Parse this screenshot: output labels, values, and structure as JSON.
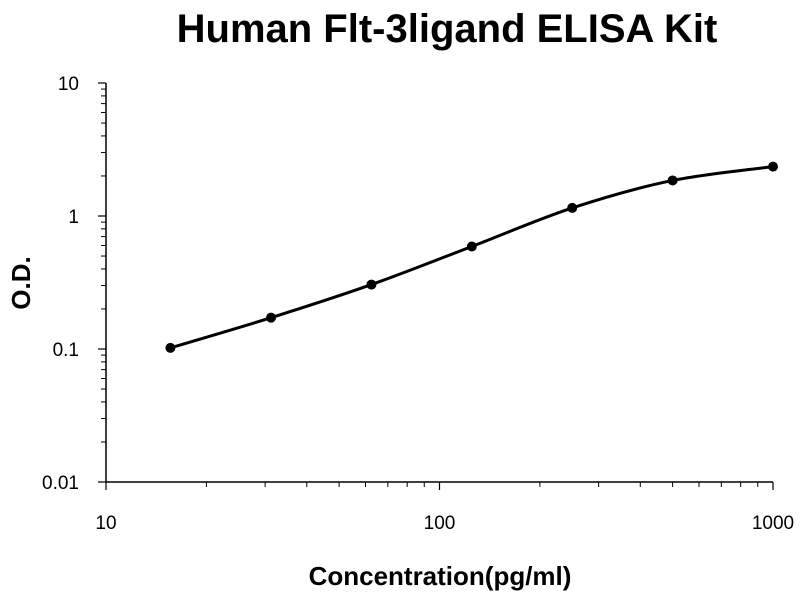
{
  "chart_data": {
    "type": "scatter",
    "title": "Human Flt-3ligand ELISA Kit",
    "xlabel": "Concentration(pg/ml)",
    "ylabel": "O.D.",
    "x_scale": "log",
    "y_scale": "log",
    "xlim": [
      10,
      1000
    ],
    "ylim": [
      0.01,
      10
    ],
    "x_ticks": [
      10,
      100,
      1000
    ],
    "x_tick_labels": [
      "10",
      "100",
      "1000"
    ],
    "y_ticks": [
      0.01,
      0.1,
      1,
      10
    ],
    "y_tick_labels": [
      "0.01",
      "0.1",
      "1",
      "10"
    ],
    "grid": false,
    "legend": false,
    "series": [
      {
        "x": [
          15.6,
          31.25,
          62.5,
          125,
          250,
          500,
          1000
        ],
        "y": [
          0.102,
          0.172,
          0.305,
          0.59,
          1.15,
          1.85,
          2.35
        ],
        "marker": "circle",
        "fit_curve": true,
        "color": "#000000"
      }
    ]
  }
}
